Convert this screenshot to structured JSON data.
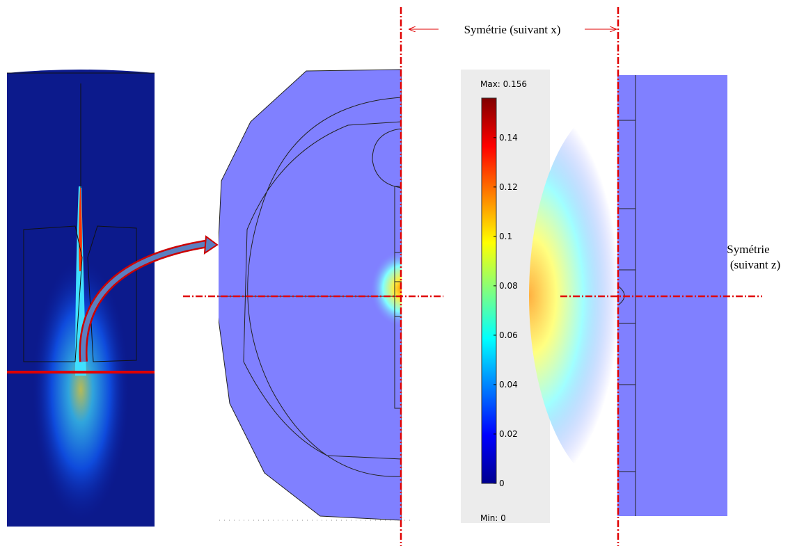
{
  "annotations": {
    "symmetry_x": "Symétrie (suivant x)",
    "symmetry_z_line1": "Symétrie",
    "symmetry_z_line2": "(suivant z)"
  },
  "colorbar": {
    "max": {
      "value": 0.156,
      "label": "Max: 0.156"
    },
    "min": {
      "value": 0,
      "label": "Min: 0"
    },
    "ticks": [
      0,
      0.02,
      0.04,
      0.06,
      0.08,
      0.1,
      0.12,
      0.14
    ]
  }
}
